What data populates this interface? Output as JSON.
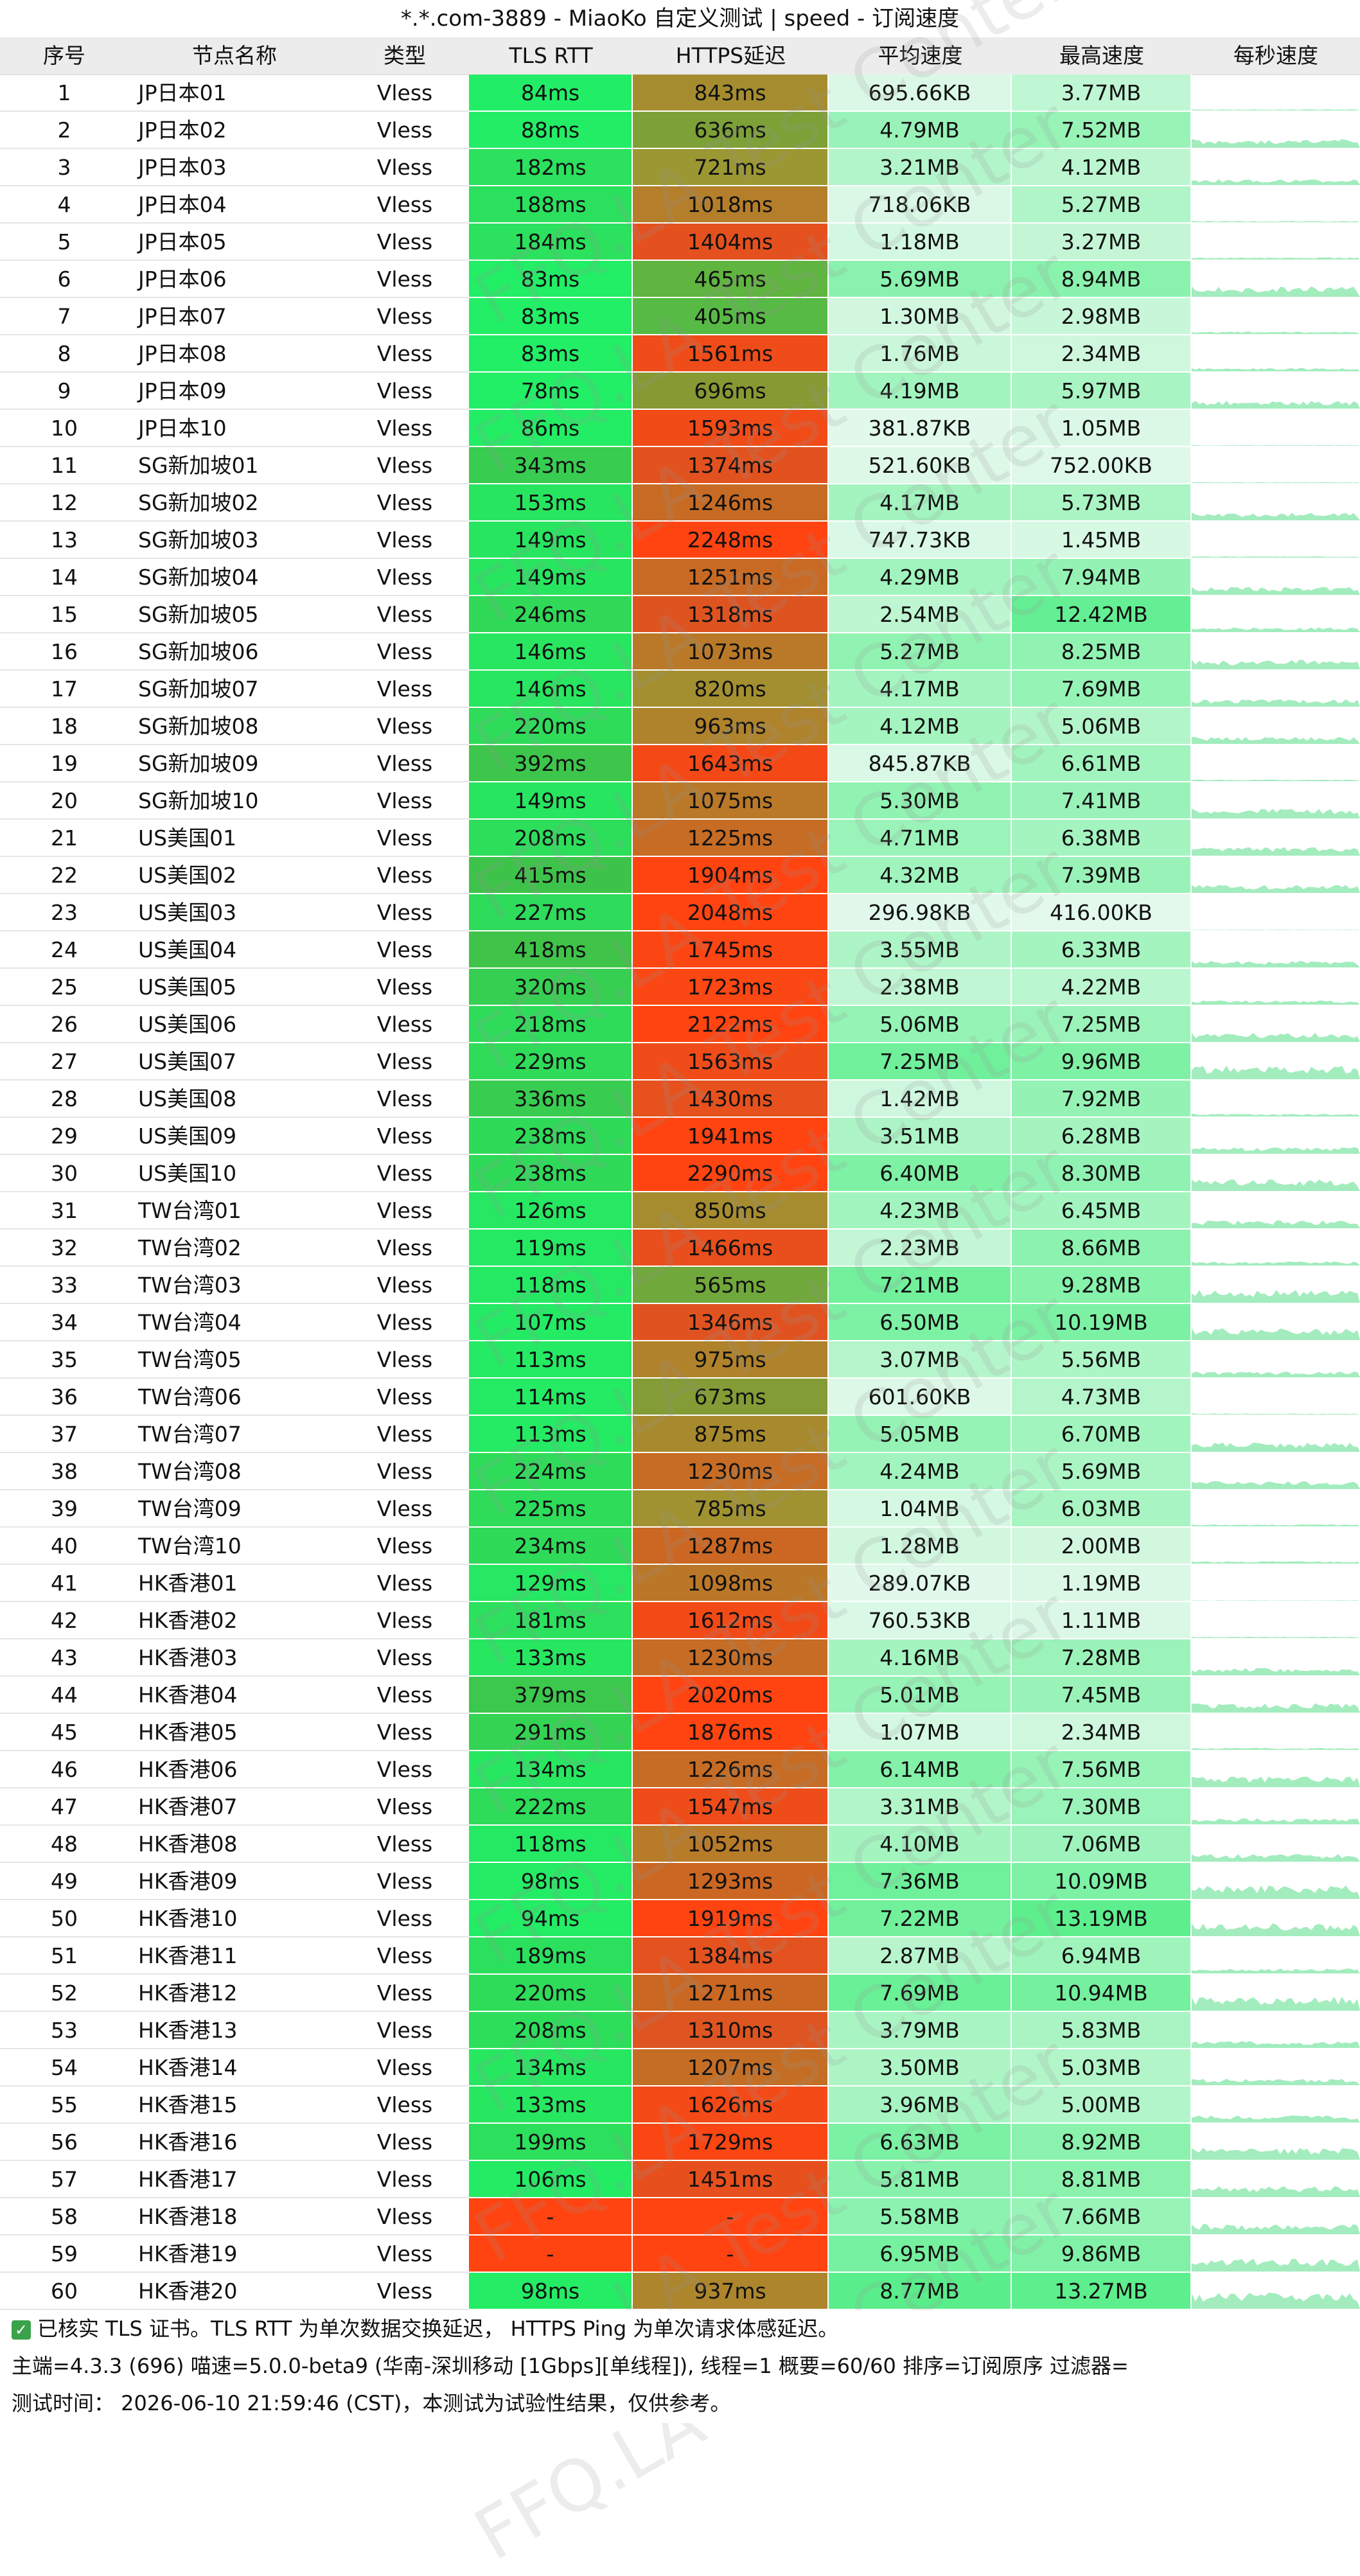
{
  "title": "*.*.com-3889 - MiaoKo 自定义测试 | speed - 订阅速度",
  "columns": [
    "序号",
    "节点名称",
    "类型",
    "TLS RTT",
    "HTTPS延迟",
    "平均速度",
    "最高速度",
    "每秒速度"
  ],
  "colors": {
    "header_bg": "#ececec",
    "tls_good": "#22ee66",
    "https_good": "#55bb44",
    "https_mid": "#999933",
    "https_bad": "#ff4411",
    "fail": "#ff4411",
    "speed_light": "#ccf5dd",
    "speed_strong": "#66ee99",
    "sparkline": "#55dd88"
  },
  "rows": [
    {
      "idx": "1",
      "name": "JP日本01",
      "type": "Vless",
      "tls": "84ms",
      "https": "843ms",
      "avg": "695.66KB",
      "max": "3.77MB"
    },
    {
      "idx": "2",
      "name": "JP日本02",
      "type": "Vless",
      "tls": "88ms",
      "https": "636ms",
      "avg": "4.79MB",
      "max": "7.52MB"
    },
    {
      "idx": "3",
      "name": "JP日本03",
      "type": "Vless",
      "tls": "182ms",
      "https": "721ms",
      "avg": "3.21MB",
      "max": "4.12MB"
    },
    {
      "idx": "4",
      "name": "JP日本04",
      "type": "Vless",
      "tls": "188ms",
      "https": "1018ms",
      "avg": "718.06KB",
      "max": "5.27MB"
    },
    {
      "idx": "5",
      "name": "JP日本05",
      "type": "Vless",
      "tls": "184ms",
      "https": "1404ms",
      "avg": "1.18MB",
      "max": "3.27MB"
    },
    {
      "idx": "6",
      "name": "JP日本06",
      "type": "Vless",
      "tls": "83ms",
      "https": "465ms",
      "avg": "5.69MB",
      "max": "8.94MB"
    },
    {
      "idx": "7",
      "name": "JP日本07",
      "type": "Vless",
      "tls": "83ms",
      "https": "405ms",
      "avg": "1.30MB",
      "max": "2.98MB"
    },
    {
      "idx": "8",
      "name": "JP日本08",
      "type": "Vless",
      "tls": "83ms",
      "https": "1561ms",
      "avg": "1.76MB",
      "max": "2.34MB"
    },
    {
      "idx": "9",
      "name": "JP日本09",
      "type": "Vless",
      "tls": "78ms",
      "https": "696ms",
      "avg": "4.19MB",
      "max": "5.97MB"
    },
    {
      "idx": "10",
      "name": "JP日本10",
      "type": "Vless",
      "tls": "86ms",
      "https": "1593ms",
      "avg": "381.87KB",
      "max": "1.05MB"
    },
    {
      "idx": "11",
      "name": "SG新加坡01",
      "type": "Vless",
      "tls": "343ms",
      "https": "1374ms",
      "avg": "521.60KB",
      "max": "752.00KB"
    },
    {
      "idx": "12",
      "name": "SG新加坡02",
      "type": "Vless",
      "tls": "153ms",
      "https": "1246ms",
      "avg": "4.17MB",
      "max": "5.73MB"
    },
    {
      "idx": "13",
      "name": "SG新加坡03",
      "type": "Vless",
      "tls": "149ms",
      "https": "2248ms",
      "avg": "747.73KB",
      "max": "1.45MB"
    },
    {
      "idx": "14",
      "name": "SG新加坡04",
      "type": "Vless",
      "tls": "149ms",
      "https": "1251ms",
      "avg": "4.29MB",
      "max": "7.94MB"
    },
    {
      "idx": "15",
      "name": "SG新加坡05",
      "type": "Vless",
      "tls": "246ms",
      "https": "1318ms",
      "avg": "2.54MB",
      "max": "12.42MB"
    },
    {
      "idx": "16",
      "name": "SG新加坡06",
      "type": "Vless",
      "tls": "146ms",
      "https": "1073ms",
      "avg": "5.27MB",
      "max": "8.25MB"
    },
    {
      "idx": "17",
      "name": "SG新加坡07",
      "type": "Vless",
      "tls": "146ms",
      "https": "820ms",
      "avg": "4.17MB",
      "max": "7.69MB"
    },
    {
      "idx": "18",
      "name": "SG新加坡08",
      "type": "Vless",
      "tls": "220ms",
      "https": "963ms",
      "avg": "4.12MB",
      "max": "5.06MB"
    },
    {
      "idx": "19",
      "name": "SG新加坡09",
      "type": "Vless",
      "tls": "392ms",
      "https": "1643ms",
      "avg": "845.87KB",
      "max": "6.61MB"
    },
    {
      "idx": "20",
      "name": "SG新加坡10",
      "type": "Vless",
      "tls": "149ms",
      "https": "1075ms",
      "avg": "5.30MB",
      "max": "7.41MB"
    },
    {
      "idx": "21",
      "name": "US美国01",
      "type": "Vless",
      "tls": "208ms",
      "https": "1225ms",
      "avg": "4.71MB",
      "max": "6.38MB"
    },
    {
      "idx": "22",
      "name": "US美国02",
      "type": "Vless",
      "tls": "415ms",
      "https": "1904ms",
      "avg": "4.32MB",
      "max": "7.39MB"
    },
    {
      "idx": "23",
      "name": "US美国03",
      "type": "Vless",
      "tls": "227ms",
      "https": "2048ms",
      "avg": "296.98KB",
      "max": "416.00KB"
    },
    {
      "idx": "24",
      "name": "US美国04",
      "type": "Vless",
      "tls": "418ms",
      "https": "1745ms",
      "avg": "3.55MB",
      "max": "6.33MB"
    },
    {
      "idx": "25",
      "name": "US美国05",
      "type": "Vless",
      "tls": "320ms",
      "https": "1723ms",
      "avg": "2.38MB",
      "max": "4.22MB"
    },
    {
      "idx": "26",
      "name": "US美国06",
      "type": "Vless",
      "tls": "218ms",
      "https": "2122ms",
      "avg": "5.06MB",
      "max": "7.25MB"
    },
    {
      "idx": "27",
      "name": "US美国07",
      "type": "Vless",
      "tls": "229ms",
      "https": "1563ms",
      "avg": "7.25MB",
      "max": "9.96MB"
    },
    {
      "idx": "28",
      "name": "US美国08",
      "type": "Vless",
      "tls": "336ms",
      "https": "1430ms",
      "avg": "1.42MB",
      "max": "7.92MB"
    },
    {
      "idx": "29",
      "name": "US美国09",
      "type": "Vless",
      "tls": "238ms",
      "https": "1941ms",
      "avg": "3.51MB",
      "max": "6.28MB"
    },
    {
      "idx": "30",
      "name": "US美国10",
      "type": "Vless",
      "tls": "238ms",
      "https": "2290ms",
      "avg": "6.40MB",
      "max": "8.30MB"
    },
    {
      "idx": "31",
      "name": "TW台湾01",
      "type": "Vless",
      "tls": "126ms",
      "https": "850ms",
      "avg": "4.23MB",
      "max": "6.45MB"
    },
    {
      "idx": "32",
      "name": "TW台湾02",
      "type": "Vless",
      "tls": "119ms",
      "https": "1466ms",
      "avg": "2.23MB",
      "max": "8.66MB"
    },
    {
      "idx": "33",
      "name": "TW台湾03",
      "type": "Vless",
      "tls": "118ms",
      "https": "565ms",
      "avg": "7.21MB",
      "max": "9.28MB"
    },
    {
      "idx": "34",
      "name": "TW台湾04",
      "type": "Vless",
      "tls": "107ms",
      "https": "1346ms",
      "avg": "6.50MB",
      "max": "10.19MB"
    },
    {
      "idx": "35",
      "name": "TW台湾05",
      "type": "Vless",
      "tls": "113ms",
      "https": "975ms",
      "avg": "3.07MB",
      "max": "5.56MB"
    },
    {
      "idx": "36",
      "name": "TW台湾06",
      "type": "Vless",
      "tls": "114ms",
      "https": "673ms",
      "avg": "601.60KB",
      "max": "4.73MB"
    },
    {
      "idx": "37",
      "name": "TW台湾07",
      "type": "Vless",
      "tls": "113ms",
      "https": "875ms",
      "avg": "5.05MB",
      "max": "6.70MB"
    },
    {
      "idx": "38",
      "name": "TW台湾08",
      "type": "Vless",
      "tls": "224ms",
      "https": "1230ms",
      "avg": "4.24MB",
      "max": "5.69MB"
    },
    {
      "idx": "39",
      "name": "TW台湾09",
      "type": "Vless",
      "tls": "225ms",
      "https": "785ms",
      "avg": "1.04MB",
      "max": "6.03MB"
    },
    {
      "idx": "40",
      "name": "TW台湾10",
      "type": "Vless",
      "tls": "234ms",
      "https": "1287ms",
      "avg": "1.28MB",
      "max": "2.00MB"
    },
    {
      "idx": "41",
      "name": "HK香港01",
      "type": "Vless",
      "tls": "129ms",
      "https": "1098ms",
      "avg": "289.07KB",
      "max": "1.19MB"
    },
    {
      "idx": "42",
      "name": "HK香港02",
      "type": "Vless",
      "tls": "181ms",
      "https": "1612ms",
      "avg": "760.53KB",
      "max": "1.11MB"
    },
    {
      "idx": "43",
      "name": "HK香港03",
      "type": "Vless",
      "tls": "133ms",
      "https": "1230ms",
      "avg": "4.16MB",
      "max": "7.28MB"
    },
    {
      "idx": "44",
      "name": "HK香港04",
      "type": "Vless",
      "tls": "379ms",
      "https": "2020ms",
      "avg": "5.01MB",
      "max": "7.45MB"
    },
    {
      "idx": "45",
      "name": "HK香港05",
      "type": "Vless",
      "tls": "291ms",
      "https": "1876ms",
      "avg": "1.07MB",
      "max": "2.34MB"
    },
    {
      "idx": "46",
      "name": "HK香港06",
      "type": "Vless",
      "tls": "134ms",
      "https": "1226ms",
      "avg": "6.14MB",
      "max": "7.56MB"
    },
    {
      "idx": "47",
      "name": "HK香港07",
      "type": "Vless",
      "tls": "222ms",
      "https": "1547ms",
      "avg": "3.31MB",
      "max": "7.30MB"
    },
    {
      "idx": "48",
      "name": "HK香港08",
      "type": "Vless",
      "tls": "118ms",
      "https": "1052ms",
      "avg": "4.10MB",
      "max": "7.06MB"
    },
    {
      "idx": "49",
      "name": "HK香港09",
      "type": "Vless",
      "tls": "98ms",
      "https": "1293ms",
      "avg": "7.36MB",
      "max": "10.09MB"
    },
    {
      "idx": "50",
      "name": "HK香港10",
      "type": "Vless",
      "tls": "94ms",
      "https": "1919ms",
      "avg": "7.22MB",
      "max": "13.19MB"
    },
    {
      "idx": "51",
      "name": "HK香港11",
      "type": "Vless",
      "tls": "189ms",
      "https": "1384ms",
      "avg": "2.87MB",
      "max": "6.94MB"
    },
    {
      "idx": "52",
      "name": "HK香港12",
      "type": "Vless",
      "tls": "220ms",
      "https": "1271ms",
      "avg": "7.69MB",
      "max": "10.94MB"
    },
    {
      "idx": "53",
      "name": "HK香港13",
      "type": "Vless",
      "tls": "208ms",
      "https": "1310ms",
      "avg": "3.79MB",
      "max": "5.83MB"
    },
    {
      "idx": "54",
      "name": "HK香港14",
      "type": "Vless",
      "tls": "134ms",
      "https": "1207ms",
      "avg": "3.50MB",
      "max": "5.03MB"
    },
    {
      "idx": "55",
      "name": "HK香港15",
      "type": "Vless",
      "tls": "133ms",
      "https": "1626ms",
      "avg": "3.96MB",
      "max": "5.00MB"
    },
    {
      "idx": "56",
      "name": "HK香港16",
      "type": "Vless",
      "tls": "199ms",
      "https": "1729ms",
      "avg": "6.63MB",
      "max": "8.92MB"
    },
    {
      "idx": "57",
      "name": "HK香港17",
      "type": "Vless",
      "tls": "106ms",
      "https": "1451ms",
      "avg": "5.81MB",
      "max": "8.81MB"
    },
    {
      "idx": "58",
      "name": "HK香港18",
      "type": "Vless",
      "tls": "-",
      "https": "-",
      "avg": "5.58MB",
      "max": "7.66MB"
    },
    {
      "idx": "59",
      "name": "HK香港19",
      "type": "Vless",
      "tls": "-",
      "https": "-",
      "avg": "6.95MB",
      "max": "9.86MB"
    },
    {
      "idx": "60",
      "name": "HK香港20",
      "type": "Vless",
      "tls": "98ms",
      "https": "937ms",
      "avg": "8.77MB",
      "max": "13.27MB"
    }
  ],
  "watermark": "FFQ.LA Test Center",
  "footer": {
    "line1": "已核实 TLS 证书。TLS RTT 为单次数据交换延迟， HTTPS Ping 为单次请求体感延迟。",
    "line2": "主端=4.3.3 (696) 喵速=5.0.0-beta9 (华南-深圳移动 [1Gbps][单线程]), 线程=1 概要=60/60 排序=订阅原序 过滤器=",
    "line3": "测试时间： 2026-06-10 21:59:46 (CST)，本测试为试验性结果，仅供参考。"
  }
}
